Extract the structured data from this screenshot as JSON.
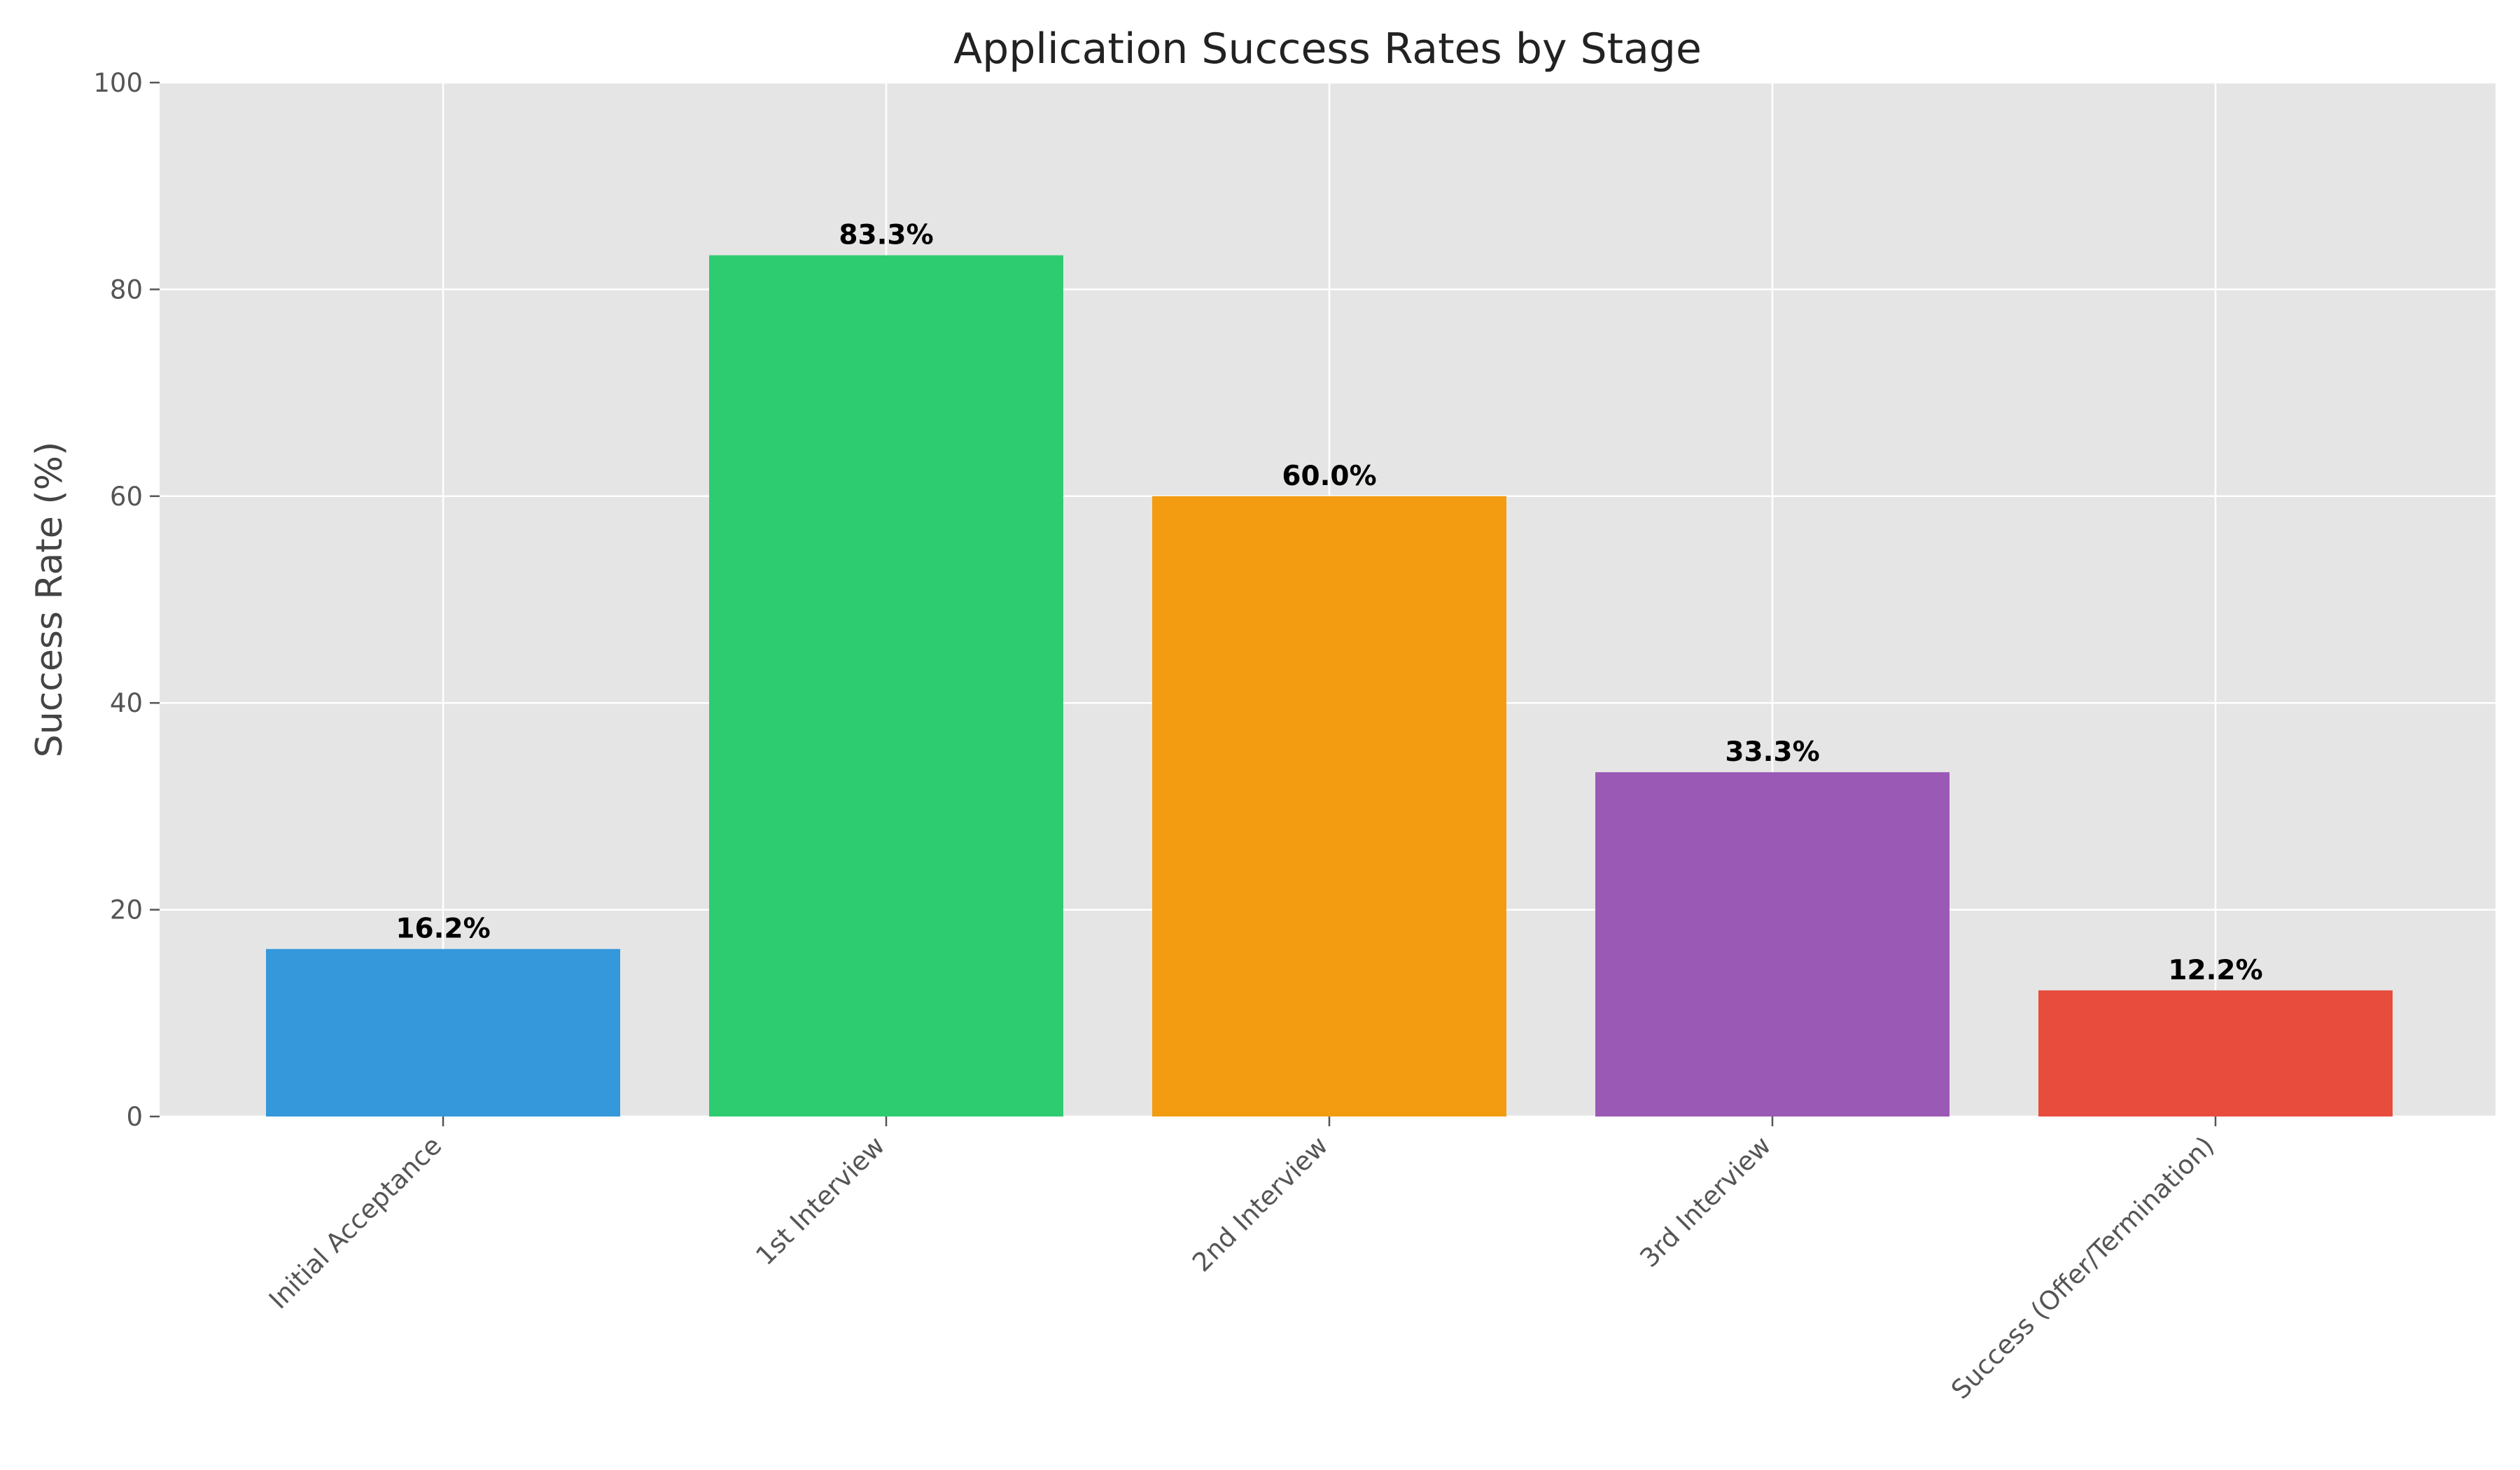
{
  "chart_data": {
    "type": "bar",
    "title": "Application Success Rates by Stage",
    "xlabel": "",
    "ylabel": "Success Rate (%)",
    "categories": [
      "Initial Acceptance",
      "1st Interview",
      "2nd Interview",
      "3rd Interview",
      "Success (Offer/Termination)"
    ],
    "values": [
      16.2,
      83.3,
      60.0,
      33.3,
      12.2
    ],
    "data_labels": [
      "16.2%",
      "83.3%",
      "60.0%",
      "33.3%",
      "12.2%"
    ],
    "colors": [
      "#3498db",
      "#2ecc71",
      "#f39c12",
      "#9b59b6",
      "#e74c3c"
    ],
    "ylim": [
      0,
      100
    ],
    "yticks": [
      0,
      20,
      40,
      60,
      80,
      100
    ],
    "grid": true,
    "plot_background": "#e5e5e5"
  }
}
